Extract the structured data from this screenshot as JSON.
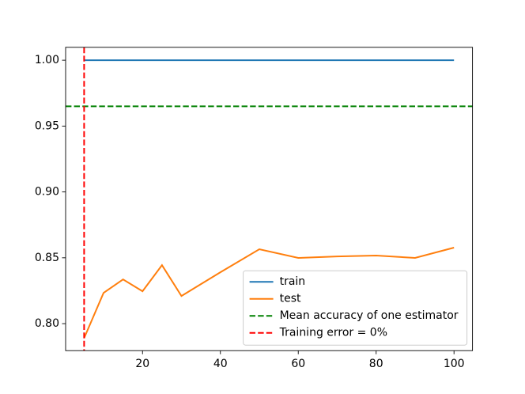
{
  "chart_data": {
    "type": "line",
    "x": [
      5,
      10,
      15,
      20,
      25,
      30,
      40,
      50,
      60,
      70,
      80,
      90,
      100
    ],
    "series": [
      {
        "name": "train",
        "color": "#1f77b4",
        "values": [
          1.0,
          1.0,
          1.0,
          1.0,
          1.0,
          1.0,
          1.0,
          1.0,
          1.0,
          1.0,
          1.0,
          1.0,
          1.0
        ]
      },
      {
        "name": "test",
        "color": "#ff7f0e",
        "values": [
          0.789,
          0.8234,
          0.8336,
          0.8246,
          0.8444,
          0.821,
          0.839,
          0.8565,
          0.8499,
          0.851,
          0.8517,
          0.8499,
          0.8577
        ]
      }
    ],
    "hlines": [
      {
        "name": "Mean accuracy of one estimator",
        "color": "#008000",
        "value": 0.965
      }
    ],
    "vlines": [
      {
        "name": "Training error = 0%",
        "color": "#ff0000",
        "value": 5
      }
    ],
    "xlim": [
      0.25,
      104.75
    ],
    "ylim": [
      0.7795,
      1.0098
    ],
    "xticks": [
      20,
      40,
      60,
      80,
      100
    ],
    "yticks": [
      {
        "value": 0.8,
        "label": "0.80"
      },
      {
        "value": 0.85,
        "label": "0.85"
      },
      {
        "value": 0.9,
        "label": "0.90"
      },
      {
        "value": 0.95,
        "label": "0.95"
      },
      {
        "value": 1.0,
        "label": "1.00"
      }
    ],
    "legend": "lower right"
  }
}
